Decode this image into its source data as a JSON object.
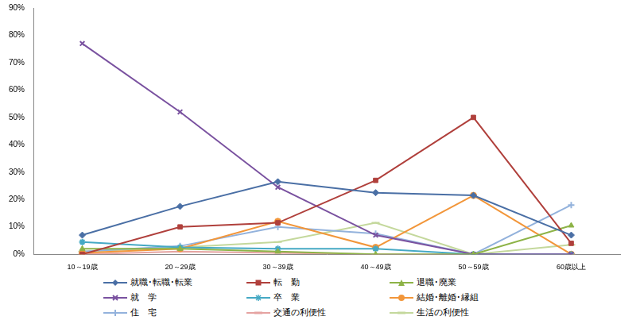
{
  "chart_data": {
    "type": "line",
    "categories": [
      "10～19歳",
      "20～29歳",
      "30～39歳",
      "40～49歳",
      "50～59歳",
      "60歳以上"
    ],
    "ylim": [
      0,
      90
    ],
    "yticks": [
      {
        "value": 0,
        "label": "0%"
      },
      {
        "value": 10,
        "label": "10%"
      },
      {
        "value": 20,
        "label": "20%"
      },
      {
        "value": 30,
        "label": "30%"
      },
      {
        "value": 40,
        "label": "40%"
      },
      {
        "value": 50,
        "label": "50%"
      },
      {
        "value": 60,
        "label": "60%"
      },
      {
        "value": 70,
        "label": "70%"
      },
      {
        "value": 80,
        "label": "80%"
      },
      {
        "value": 90,
        "label": "90%"
      }
    ],
    "grid": false,
    "legend": "bottom",
    "series": [
      {
        "name": "就職･転職･転業",
        "color": "#4a6fa5",
        "marker": "diamond",
        "values": [
          7,
          17.5,
          26.5,
          22.5,
          21.5,
          7
        ]
      },
      {
        "name": "転　勤",
        "color": "#b0403c",
        "marker": "square",
        "values": [
          0,
          10,
          11.5,
          27,
          50,
          4
        ]
      },
      {
        "name": "退職･廃業",
        "color": "#8db347",
        "marker": "triangle",
        "values": [
          2,
          2,
          1,
          0,
          0,
          10.5
        ]
      },
      {
        "name": "就　学",
        "color": "#7a52a0",
        "marker": "x",
        "values": [
          77,
          52,
          24.5,
          7,
          0,
          0
        ]
      },
      {
        "name": "卒　業",
        "color": "#45a9c4",
        "marker": "star",
        "values": [
          4.5,
          2.5,
          2,
          2,
          0,
          0
        ]
      },
      {
        "name": "結婚･離婚･縁組",
        "color": "#f2963a",
        "marker": "circle",
        "values": [
          0.5,
          2,
          12,
          2.5,
          21.5,
          0
        ]
      },
      {
        "name": "住　宅",
        "color": "#93b2dc",
        "marker": "plus",
        "values": [
          1,
          3,
          10,
          7.5,
          0,
          18
        ]
      },
      {
        "name": "交通の利便性",
        "color": "#e5a3a1",
        "marker": "dash",
        "values": [
          0,
          1,
          0.5,
          0,
          0,
          0
        ]
      },
      {
        "name": "生活の利便性",
        "color": "#c4d89c",
        "marker": "dash",
        "values": [
          1,
          2.5,
          4.5,
          11.5,
          0,
          3.5
        ]
      }
    ]
  }
}
